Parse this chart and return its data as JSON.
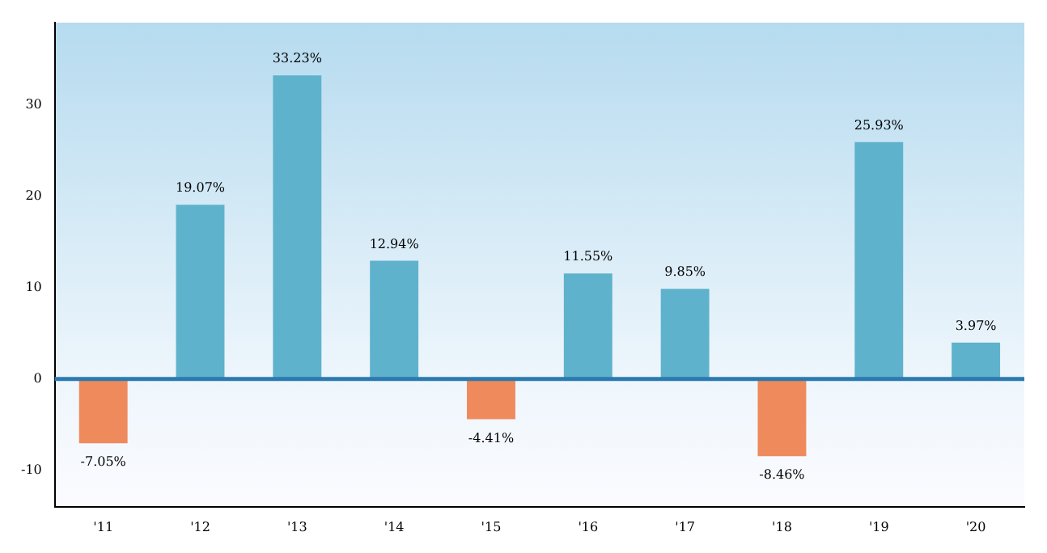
{
  "chart_data": {
    "type": "bar",
    "categories": [
      "'11",
      "'12",
      "'13",
      "'14",
      "'15",
      "'16",
      "'17",
      "'18",
      "'19",
      "'20"
    ],
    "values": [
      -7.05,
      19.07,
      33.23,
      12.94,
      -4.41,
      11.55,
      9.85,
      -8.46,
      25.93,
      3.97
    ],
    "colors": [
      "#ef8a5c",
      "#5fb2cc",
      "#5fb2cc",
      "#5fb2cc",
      "#ef8a5c",
      "#5fb2cc",
      "#5fb2cc",
      "#ef8a5c",
      "#5fb2cc",
      "#5fb2cc"
    ],
    "value_labels": [
      "-7.05%",
      "19.07%",
      "33.23%",
      "12.94%",
      "-4.41%",
      "11.55%",
      "9.85%",
      "-8.46%",
      "25.93%",
      "3.97%"
    ],
    "ylim": [
      -14,
      39
    ],
    "yticks": [
      -10,
      0,
      10,
      20,
      30
    ],
    "ref_lines": [
      {
        "axis": "y",
        "value": 0,
        "color": "#2a7ab0"
      }
    ],
    "grid": false,
    "legend": false
  }
}
